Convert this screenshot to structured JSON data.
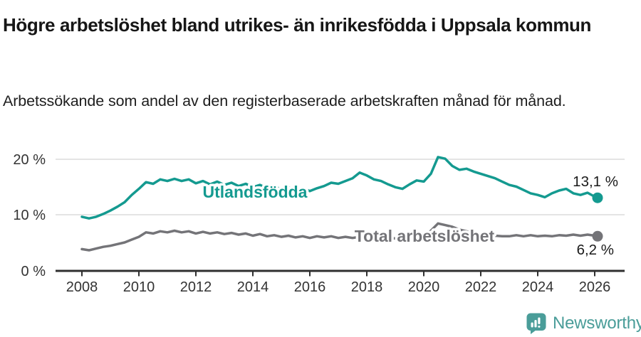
{
  "header": {
    "title": "Högre arbetslöshet bland utrikes- än inrikesfödda i Uppsala kommun",
    "subtitle": "Arbetssökande som andel av den registerbaserade arbetskraften månad för månad."
  },
  "chart_data": {
    "type": "line",
    "title": "Högre arbetslöshet bland utrikes- än inrikesfödda i Uppsala kommun",
    "subtitle": "Arbetssökande som andel av den registerbaserade arbetskraften månad för månad.",
    "grid": "horizontal",
    "legend_position": "inline-labels-on-lines",
    "xlim": [
      2007.1,
      2027.1
    ],
    "ylim": [
      0,
      21.5
    ],
    "x_ticks": [
      2008,
      2010,
      2012,
      2014,
      2016,
      2018,
      2020,
      2022,
      2024,
      2026
    ],
    "x_tick_labels": [
      "2008",
      "2010",
      "2012",
      "2014",
      "2016",
      "2018",
      "2020",
      "2022",
      "2024",
      "2026"
    ],
    "y_ticks": [
      0,
      10,
      20
    ],
    "y_tick_labels": [
      "0 %",
      "10 %",
      "20 %"
    ],
    "x": [
      2008,
      2008.25,
      2008.5,
      2008.75,
      2009,
      2009.25,
      2009.5,
      2009.75,
      2010,
      2010.25,
      2010.5,
      2010.75,
      2011,
      2011.25,
      2011.5,
      2011.75,
      2012,
      2012.25,
      2012.5,
      2012.75,
      2013,
      2013.25,
      2013.5,
      2013.75,
      2014,
      2014.25,
      2014.5,
      2014.75,
      2015,
      2015.25,
      2015.5,
      2015.75,
      2016,
      2016.25,
      2016.5,
      2016.75,
      2017,
      2017.25,
      2017.5,
      2017.75,
      2018,
      2018.25,
      2018.5,
      2018.75,
      2019,
      2019.25,
      2019.5,
      2019.75,
      2020,
      2020.25,
      2020.5,
      2020.75,
      2021,
      2021.25,
      2021.5,
      2021.75,
      2022,
      2022.25,
      2022.5,
      2022.75,
      2023,
      2023.25,
      2023.5,
      2023.75,
      2024,
      2024.25,
      2024.5,
      2024.75,
      2025,
      2025.25,
      2025.5,
      2025.75,
      2026,
      2026.1
    ],
    "series": [
      {
        "name": "Utlandsfödda",
        "color": "#149a90",
        "end_label": "13,1 %",
        "end_value": 13.1,
        "values": [
          9.7,
          9.4,
          9.7,
          10.2,
          10.8,
          11.5,
          12.3,
          13.6,
          14.7,
          15.9,
          15.6,
          16.4,
          16.1,
          16.5,
          16.1,
          16.4,
          15.7,
          16.1,
          15.5,
          16.0,
          15.4,
          15.8,
          15.2,
          15.6,
          15.0,
          15.4,
          14.8,
          15.2,
          14.6,
          15.0,
          14.4,
          14.8,
          14.3,
          14.8,
          15.2,
          15.8,
          15.6,
          16.1,
          16.6,
          17.6,
          17.1,
          16.4,
          16.1,
          15.5,
          15.0,
          14.7,
          15.5,
          16.2,
          16.0,
          17.4,
          20.4,
          20.1,
          18.8,
          18.1,
          18.3,
          17.8,
          17.4,
          17.0,
          16.6,
          16.0,
          15.4,
          15.1,
          14.5,
          13.9,
          13.6,
          13.2,
          13.9,
          14.4,
          14.7,
          13.9,
          13.6,
          14.0,
          13.3,
          13.1
        ]
      },
      {
        "name": "Total arbetslöshet",
        "color": "#747478",
        "end_label": "6,2 %",
        "end_value": 6.2,
        "values": [
          3.9,
          3.7,
          4.0,
          4.3,
          4.5,
          4.8,
          5.1,
          5.6,
          6.1,
          6.9,
          6.7,
          7.1,
          6.9,
          7.2,
          6.9,
          7.1,
          6.7,
          7.0,
          6.7,
          6.9,
          6.6,
          6.8,
          6.5,
          6.7,
          6.3,
          6.6,
          6.2,
          6.4,
          6.1,
          6.3,
          6.0,
          6.2,
          5.9,
          6.2,
          6.0,
          6.2,
          5.9,
          6.1,
          5.9,
          6.1,
          5.8,
          6.0,
          5.8,
          6.0,
          5.8,
          5.9,
          6.0,
          6.1,
          6.2,
          7.2,
          8.5,
          8.2,
          7.9,
          7.4,
          7.1,
          6.8,
          6.5,
          6.4,
          6.3,
          6.2,
          6.2,
          6.4,
          6.2,
          6.4,
          6.2,
          6.3,
          6.2,
          6.4,
          6.3,
          6.5,
          6.3,
          6.5,
          6.3,
          6.2
        ]
      }
    ]
  },
  "footer": {
    "brand": "Newsworthy",
    "brand_color": "#4a9d99"
  }
}
